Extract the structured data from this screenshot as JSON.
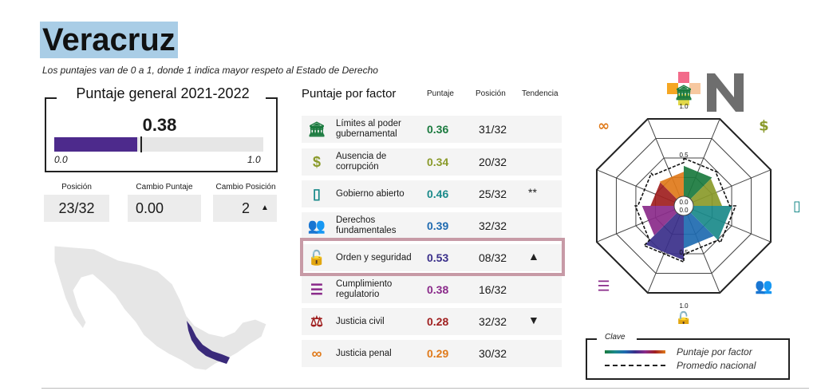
{
  "title": "Veracruz",
  "subtitle": "Los puntajes van de 0 a 1, donde 1 indica mayor respeto al Estado de Derecho",
  "general": {
    "title": "Puntaje general 2021-2022",
    "score": 0.38,
    "score_label": "0.38",
    "min_label": "0.0",
    "max_label": "1.0",
    "bar_color": "#4d2a8c"
  },
  "stats": {
    "position_label": "Posición",
    "position_value": "23/32",
    "change_score_label": "Cambio Puntaje",
    "change_score_value": "0.00",
    "change_position_label": "Cambio Posición",
    "change_position_value": "2",
    "change_position_icon": "up-triangle-icon"
  },
  "factors": {
    "title": "Puntaje por factor",
    "col_score": "Puntaje",
    "col_position": "Posición",
    "col_trend": "Tendencia",
    "rows": [
      {
        "name": "Límites al poder gubernamental",
        "score": "0.36",
        "position": "31/32",
        "trend": "",
        "color": "#1a7a3e",
        "icon": "government-building-icon"
      },
      {
        "name": "Ausencia de corrupción",
        "score": "0.34",
        "position": "20/32",
        "trend": "",
        "color": "#8a9a2a",
        "icon": "money-bag-icon"
      },
      {
        "name": "Gobierno abierto",
        "score": "0.46",
        "position": "25/32",
        "trend": "**",
        "color": "#1a8a8a",
        "icon": "open-door-icon"
      },
      {
        "name": "Derechos fundamentales",
        "score": "0.39",
        "position": "32/32",
        "trend": "",
        "color": "#1e6ab0",
        "icon": "people-icon"
      },
      {
        "name": "Orden y seguridad",
        "score": "0.53",
        "position": "08/32",
        "trend": "▲",
        "color": "#3a2f8a",
        "icon": "padlock-icon"
      },
      {
        "name": "Cumplimiento regulatorio",
        "score": "0.38",
        "position": "16/32",
        "trend": "",
        "color": "#8a2a8a",
        "icon": "checklist-icon"
      },
      {
        "name": "Justicia civil",
        "score": "0.28",
        "position": "32/32",
        "trend": "▼",
        "color": "#a02020",
        "icon": "scales-icon"
      },
      {
        "name": "Justicia penal",
        "score": "0.29",
        "position": "30/32",
        "trend": "",
        "color": "#e07a1a",
        "icon": "handcuffs-icon"
      }
    ]
  },
  "chart_data": {
    "type": "radar",
    "axes": [
      "Límites al poder gubernamental",
      "Ausencia de corrupción",
      "Gobierno abierto",
      "Derechos fundamentales",
      "Orden y seguridad",
      "Cumplimiento regulatorio",
      "Justicia civil",
      "Justicia penal"
    ],
    "series": [
      {
        "name": "Puntaje por factor",
        "values": [
          0.36,
          0.34,
          0.46,
          0.39,
          0.53,
          0.38,
          0.28,
          0.29
        ]
      },
      {
        "name": "Promedio nacional",
        "values": [
          0.45,
          0.43,
          0.5,
          0.46,
          0.55,
          0.46,
          0.43,
          0.4
        ]
      }
    ],
    "range": [
      0,
      1
    ],
    "ring_labels": [
      "1.0",
      "0.5",
      "0.0",
      "0.0",
      "0.5",
      "1.0"
    ],
    "segment_colors": [
      "#1a7a3e",
      "#8a9a2a",
      "#1a8a8a",
      "#1e6ab0",
      "#3a2f8a",
      "#8a2a8a",
      "#a02020",
      "#e07a1a"
    ]
  },
  "key": {
    "title": "Clave",
    "series_label": "Puntaje por factor",
    "average_label": "Promedio nacional"
  }
}
